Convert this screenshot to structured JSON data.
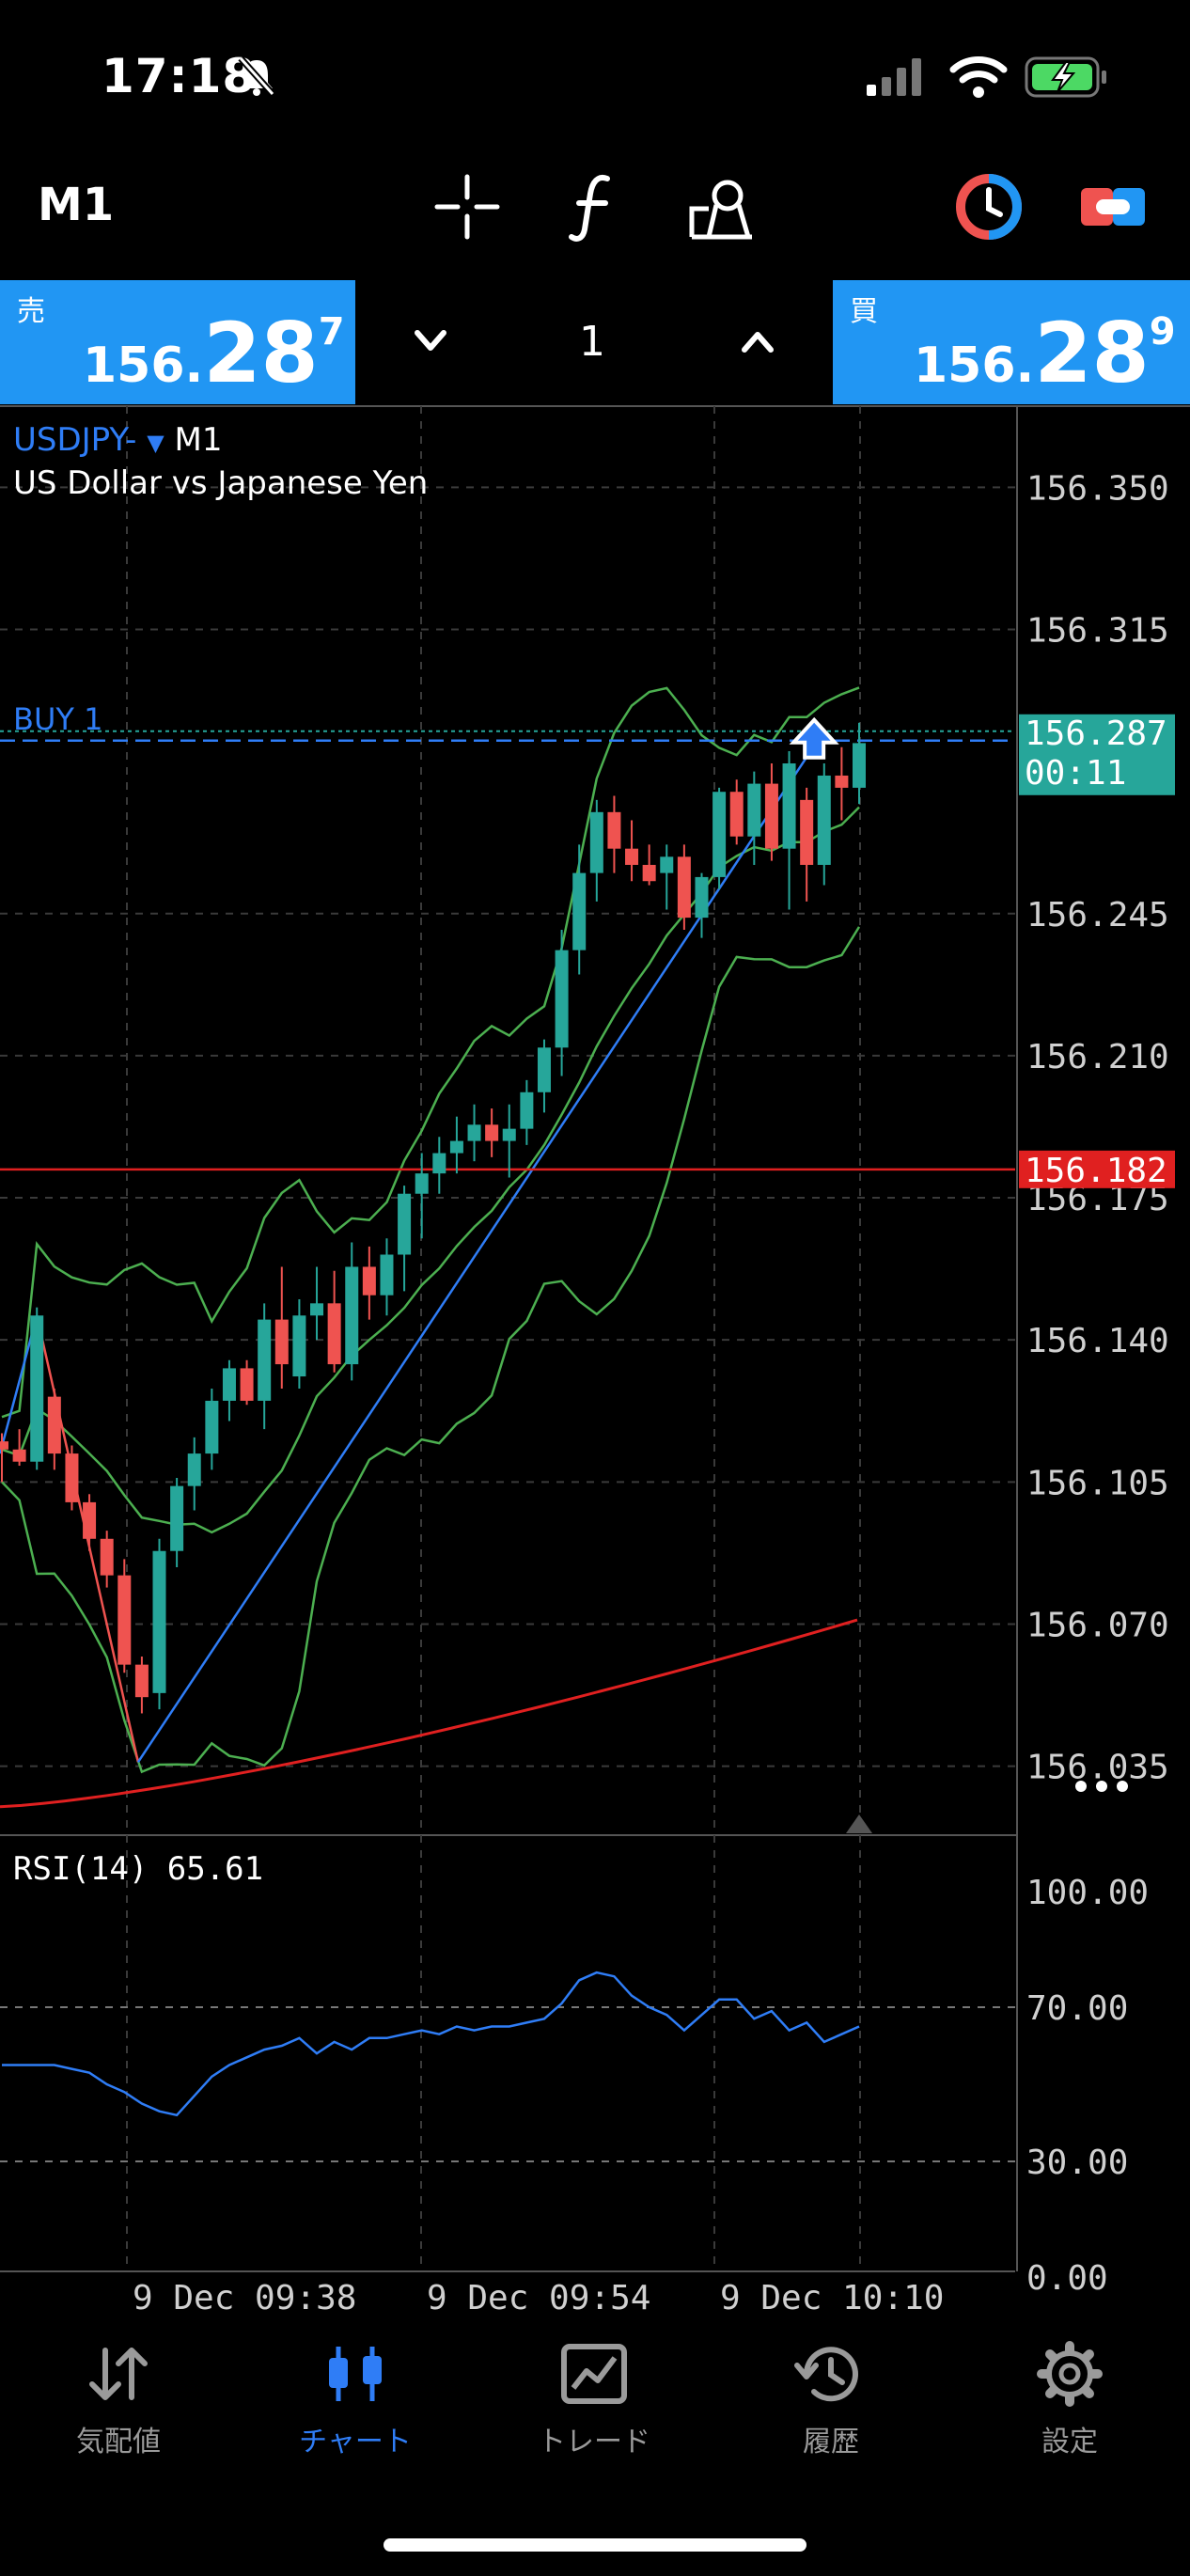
{
  "status_bar": {
    "time": "17:18"
  },
  "header": {
    "timeframe": "M1",
    "tools": [
      "crosshair-icon",
      "indicators-icon",
      "objects-icon",
      "one-click-trading-icon",
      "account-icon"
    ]
  },
  "quote": {
    "sell": {
      "tag": "売",
      "price_prefix": "156.",
      "price_big": "28",
      "price_sup": "7"
    },
    "buy": {
      "tag": "買",
      "price_prefix": "156.",
      "price_big": "28",
      "price_sup": "9"
    },
    "lot": "1"
  },
  "chart": {
    "symbol": "USDJPY-",
    "timeframe": "M1",
    "description": "US Dollar vs Japanese Yen",
    "order_label": "BUY 1",
    "current_price_label": "156.287",
    "countdown": "00:11",
    "alert_price_label": "156.182",
    "price_ticks": [
      "156.350",
      "156.315",
      "156.245",
      "156.210",
      "156.175",
      "156.140",
      "156.105",
      "156.070",
      "156.035"
    ],
    "rsi_label": "RSI(14) 65.61",
    "rsi_ticks": [
      "100.00",
      "70.00",
      "30.00",
      "0.00"
    ],
    "time_labels": [
      "9 Dec 09:38",
      "9 Dec 09:54",
      "9 Dec 10:10"
    ],
    "colors": {
      "bull": "#26a69a",
      "bear": "#ef5350",
      "bands": "#4caf50",
      "ma": "#e02020",
      "rsi": "#2f7df6",
      "buy_line": "#2f7df6",
      "alert_line": "#e02020"
    }
  },
  "chart_data": {
    "type": "candlestick",
    "y_axis_range": [
      156.018,
      156.37
    ],
    "candles": [
      [
        156.115,
        156.117,
        156.105,
        156.113
      ],
      [
        156.113,
        156.118,
        156.109,
        156.11
      ],
      [
        156.11,
        156.148,
        156.108,
        156.146
      ],
      [
        156.126,
        156.128,
        156.108,
        156.112
      ],
      [
        156.112,
        156.114,
        156.098,
        156.1
      ],
      [
        156.1,
        156.102,
        156.088,
        156.091
      ],
      [
        156.091,
        156.093,
        156.079,
        156.082
      ],
      [
        156.082,
        156.086,
        156.058,
        156.06
      ],
      [
        156.06,
        156.062,
        156.048,
        156.052
      ],
      [
        156.053,
        156.091,
        156.049,
        156.088
      ],
      [
        156.088,
        156.106,
        156.084,
        156.104
      ],
      [
        156.104,
        156.116,
        156.098,
        156.112
      ],
      [
        156.112,
        156.128,
        156.108,
        156.125
      ],
      [
        156.125,
        156.135,
        156.12,
        156.133
      ],
      [
        156.133,
        156.135,
        156.124,
        156.125
      ],
      [
        156.125,
        156.149,
        156.118,
        156.145
      ],
      [
        156.145,
        156.158,
        156.128,
        156.134
      ],
      [
        156.131,
        156.15,
        156.128,
        156.146
      ],
      [
        156.146,
        156.158,
        156.14,
        156.149
      ],
      [
        156.149,
        156.157,
        156.132,
        156.134
      ],
      [
        156.134,
        156.164,
        156.13,
        156.158
      ],
      [
        156.158,
        156.163,
        156.145,
        156.151
      ],
      [
        156.151,
        156.165,
        156.146,
        156.161
      ],
      [
        156.161,
        156.178,
        156.152,
        156.176
      ],
      [
        156.176,
        156.186,
        156.165,
        156.181
      ],
      [
        156.181,
        156.19,
        156.176,
        156.186
      ],
      [
        156.186,
        156.195,
        156.181,
        156.189
      ],
      [
        156.189,
        156.198,
        156.184,
        156.193
      ],
      [
        156.193,
        156.197,
        156.185,
        156.189
      ],
      [
        156.189,
        156.198,
        156.18,
        156.192
      ],
      [
        156.192,
        156.204,
        156.188,
        156.201
      ],
      [
        156.201,
        156.214,
        156.196,
        156.212
      ],
      [
        156.212,
        156.241,
        156.205,
        156.236
      ],
      [
        156.236,
        156.262,
        156.23,
        156.255
      ],
      [
        156.255,
        156.273,
        156.248,
        156.27
      ],
      [
        156.27,
        156.274,
        156.255,
        156.261
      ],
      [
        156.261,
        156.268,
        156.253,
        156.257
      ],
      [
        156.257,
        156.262,
        156.252,
        156.253
      ],
      [
        156.255,
        156.262,
        156.246,
        156.259
      ],
      [
        156.259,
        156.262,
        156.241,
        156.244
      ],
      [
        156.244,
        156.255,
        156.239,
        156.254
      ],
      [
        156.254,
        156.276,
        156.251,
        156.275
      ],
      [
        156.275,
        156.278,
        156.262,
        156.264
      ],
      [
        156.264,
        156.28,
        156.257,
        156.277
      ],
      [
        156.277,
        156.282,
        156.258,
        156.261
      ],
      [
        156.261,
        156.285,
        156.246,
        156.282
      ],
      [
        156.273,
        156.276,
        156.248,
        156.257
      ],
      [
        156.257,
        156.282,
        156.252,
        156.279
      ],
      [
        156.279,
        156.286,
        156.268,
        156.276
      ],
      [
        156.276,
        156.292,
        156.272,
        156.287
      ]
    ],
    "rsi_values": [
      55,
      55,
      55,
      55,
      54,
      53,
      50,
      48,
      45,
      43,
      42,
      47,
      52,
      55,
      57,
      59,
      60,
      62,
      58,
      61,
      59,
      62,
      62,
      63,
      64,
      63,
      65,
      64,
      65,
      65,
      66,
      67,
      71,
      77,
      79,
      78,
      73,
      70,
      68,
      64,
      68,
      72,
      72,
      67,
      69,
      64,
      66,
      61,
      63,
      65
    ],
    "rsi_range": [
      0,
      100
    ],
    "levels": {
      "buy_entry": 156.289,
      "alert": 156.182,
      "rsi_levels": [
        70,
        30
      ]
    }
  },
  "bottom_nav": [
    {
      "label": "気配値",
      "icon": "quotes-icon",
      "active": false
    },
    {
      "label": "チャート",
      "icon": "chart-icon",
      "active": true
    },
    {
      "label": "トレード",
      "icon": "trade-icon",
      "active": false
    },
    {
      "label": "履歴",
      "icon": "history-icon",
      "active": false
    },
    {
      "label": "設定",
      "icon": "settings-icon",
      "active": false
    }
  ]
}
